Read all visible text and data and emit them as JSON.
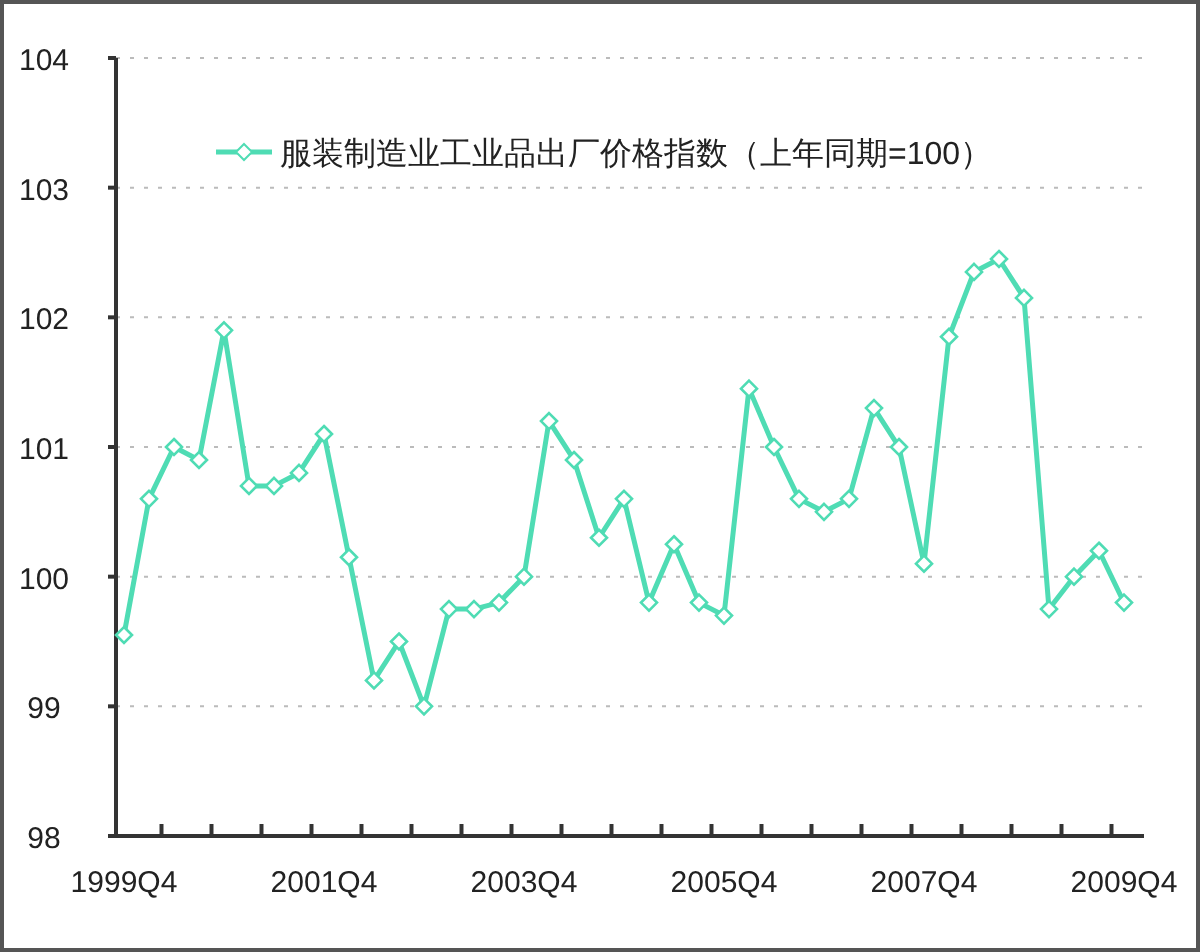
{
  "chart_data": {
    "type": "line",
    "categories": [
      "1999Q4",
      null,
      null,
      null,
      null,
      null,
      null,
      null,
      "2001Q4",
      null,
      null,
      null,
      null,
      null,
      null,
      null,
      "2003Q4",
      null,
      null,
      null,
      null,
      null,
      null,
      null,
      "2005Q4",
      null,
      null,
      null,
      null,
      null,
      null,
      null,
      "2007Q4",
      null,
      null,
      null,
      null,
      null,
      null,
      null,
      "2009Q4"
    ],
    "series": [
      {
        "name": "服装制造业工业品出厂价格指数（上年同期=100）",
        "color": "#4fdcb4",
        "values": [
          99.55,
          100.6,
          101.0,
          100.9,
          101.9,
          100.7,
          100.7,
          100.8,
          101.1,
          100.15,
          99.2,
          99.5,
          99.0,
          99.75,
          99.75,
          99.8,
          100.0,
          101.2,
          100.9,
          100.3,
          100.6,
          99.8,
          100.25,
          99.8,
          99.7,
          101.45,
          101.0,
          100.6,
          100.5,
          100.6,
          101.3,
          101.0,
          100.1,
          101.85,
          102.35,
          102.45,
          102.15,
          99.75,
          100.0,
          100.2,
          99.8
        ]
      }
    ],
    "ylim": [
      98,
      104
    ],
    "yticks": [
      98,
      99,
      100,
      101,
      102,
      103,
      104
    ],
    "grid": "y",
    "legend": "top",
    "marker": "diamond",
    "line_style": "solid"
  }
}
